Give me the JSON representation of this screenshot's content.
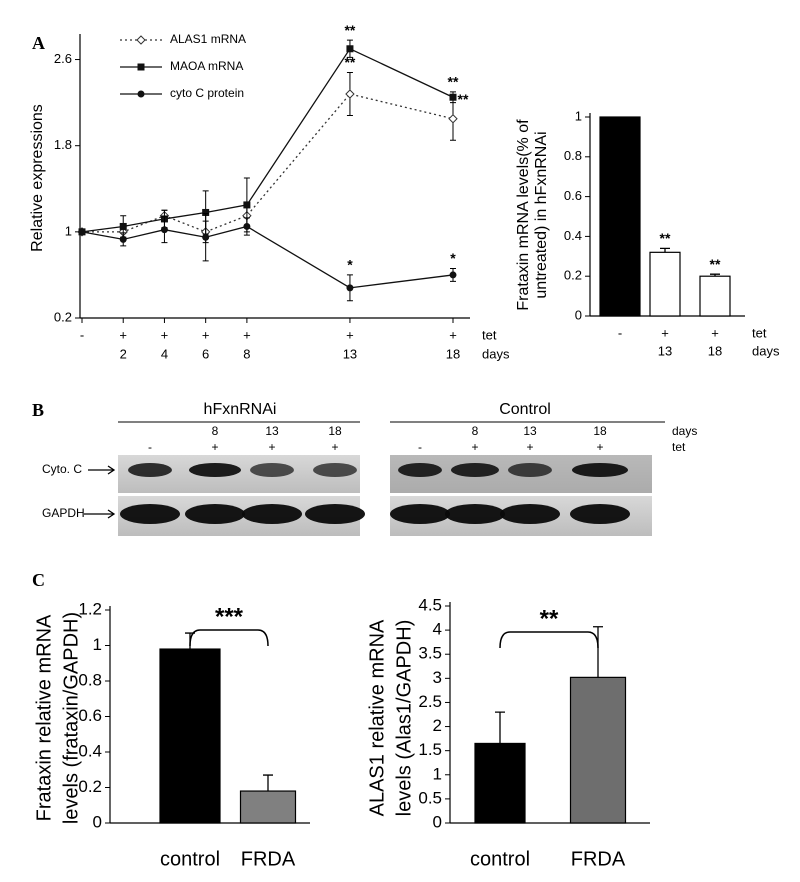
{
  "panel_labels": [
    "A",
    "B",
    "C"
  ],
  "chart_data": [
    {
      "type": "line",
      "ylabel": "Relative expressions",
      "x": [
        0,
        2,
        4,
        6,
        8,
        13,
        18
      ],
      "xlim": [
        0,
        18
      ],
      "xticks": [
        2,
        4,
        6,
        8,
        13,
        18
      ],
      "tet": [
        "-",
        "+",
        "+",
        "+",
        "+",
        "+",
        "+"
      ],
      "treatment_label": "tet",
      "x_unit_label": "days",
      "ylim": [
        0.2,
        2.8
      ],
      "yticks": [
        0.2,
        1,
        1.8,
        2.6
      ],
      "legend": "upper left",
      "series": [
        {
          "name": "ALAS1 mRNA",
          "color": "#333333",
          "line_style": "dotted",
          "marker": "open-diamond",
          "values": [
            1,
            1.0,
            1.15,
            1.0,
            1.15,
            2.28,
            2.05
          ],
          "errors": [
            0,
            0.05,
            0.05,
            0.1,
            0.1,
            0.2,
            0.2
          ],
          "significance": [
            null,
            null,
            null,
            null,
            null,
            "**",
            "**"
          ]
        },
        {
          "name": "MAOA mRNA",
          "color": "#111111",
          "line_style": "solid",
          "marker": "square",
          "values": [
            1,
            1.05,
            1.12,
            1.18,
            1.25,
            2.7,
            2.25
          ],
          "errors": [
            0,
            0.1,
            0.08,
            0.2,
            0.25,
            0.08,
            0.05
          ],
          "significance": [
            null,
            null,
            null,
            null,
            null,
            "**",
            "**"
          ]
        },
        {
          "name": "cyto C protein",
          "color": "#111111",
          "line_style": "solid",
          "marker": "circle",
          "values": [
            1,
            0.93,
            1.02,
            0.95,
            1.05,
            0.48,
            0.6
          ],
          "errors": [
            0,
            0.06,
            0.12,
            0.22,
            0.08,
            0.12,
            0.06
          ],
          "significance": [
            null,
            null,
            null,
            null,
            null,
            "*",
            "*"
          ]
        }
      ]
    },
    {
      "type": "bar",
      "ylabel": [
        "Frataxin mRNA levels(% of",
        "untreated) in hFxnRNAi"
      ],
      "categories": [
        null,
        "13",
        "18"
      ],
      "tet": [
        "-",
        "+",
        "+"
      ],
      "treatment_label": "tet",
      "x_unit_label": "days",
      "values": [
        1,
        0.32,
        0.2
      ],
      "errors": [
        null,
        0.02,
        0.01
      ],
      "significance": [
        null,
        "**",
        "**"
      ],
      "colors": [
        "#000000",
        "#ffffff",
        "#ffffff"
      ],
      "ylim": [
        0,
        1
      ],
      "yticks": [
        0,
        0.2,
        0.4,
        0.6,
        0.8,
        1
      ]
    },
    {
      "type": "bar",
      "ylabel": [
        "Frataxin relative mRNA",
        "levels (frataxin/GAPDH)"
      ],
      "categories": [
        "control",
        "FRDA"
      ],
      "values": [
        0.98,
        0.18
      ],
      "errors": [
        0.09,
        0.09
      ],
      "colors": [
        "#000000",
        "#808080"
      ],
      "comparison": "***",
      "ylim": [
        0,
        1.2
      ],
      "yticks": [
        0,
        0.2,
        0.4,
        0.6,
        0.8,
        1,
        1.2
      ]
    },
    {
      "type": "bar",
      "ylabel": [
        "ALAS1 relative mRNA",
        "levels (Alas1/GAPDH)"
      ],
      "categories": [
        "control",
        "FRDA"
      ],
      "values": [
        1.65,
        3.02
      ],
      "errors": [
        0.65,
        1.05
      ],
      "colors": [
        "#000000",
        "#6e6e6e"
      ],
      "comparison": "**",
      "ylim": [
        0,
        4.5
      ],
      "yticks": [
        0,
        0.5,
        1,
        1.5,
        2,
        2.5,
        3,
        3.5,
        4,
        4.5
      ]
    }
  ],
  "blot": {
    "groups": [
      "hFxnRNAi",
      "Control"
    ],
    "days_label": "days",
    "tet_label": "tet",
    "lane_days": [
      null,
      "8",
      "13",
      "18",
      null,
      "8",
      "13",
      "18"
    ],
    "lane_tet": [
      "-",
      "+",
      "+",
      "+",
      "-",
      "+",
      "+",
      "+"
    ],
    "rows": [
      "Cyto. C",
      "GAPDH"
    ]
  }
}
